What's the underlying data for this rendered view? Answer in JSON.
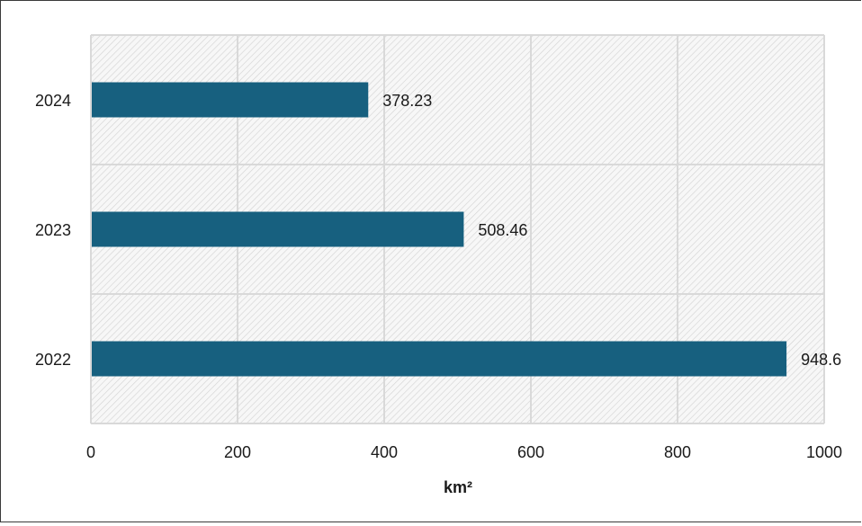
{
  "chart_data": {
    "type": "bar",
    "orientation": "horizontal",
    "title": "",
    "xlabel": "km²",
    "ylabel": "",
    "categories": [
      "2022",
      "2023",
      "2024"
    ],
    "series": [
      {
        "values": [
          948.6,
          508.46,
          378.23
        ],
        "color": "#17607f"
      }
    ],
    "data_labels": [
      "948.6",
      "508.46",
      "378.23"
    ],
    "xlim": [
      0,
      1000
    ],
    "xticks": [
      0,
      200,
      400,
      600,
      800,
      1000
    ],
    "xtick_labels": [
      "0",
      "200",
      "400",
      "600",
      "800",
      "1000"
    ],
    "grid": true,
    "plot_background": "hatched light gray",
    "legend": "none"
  }
}
